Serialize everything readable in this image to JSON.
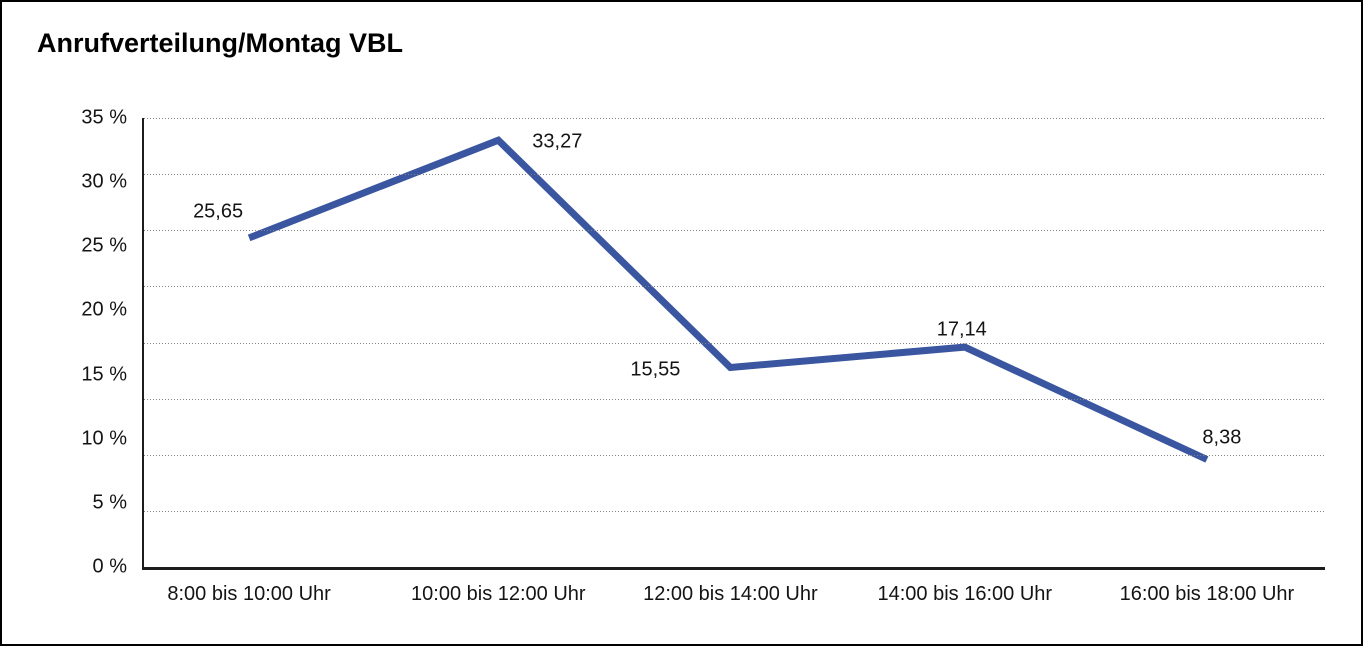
{
  "figure": {
    "background": "#ffffff",
    "border_color": "#000000"
  },
  "chart_data": {
    "type": "line",
    "title": "Anrufverteilung/Montag VBL",
    "categories": [
      "8:00 bis 10:00 Uhr",
      "10:00 bis 12:00 Uhr",
      "12:00 bis 14:00 Uhr",
      "14:00 bis 16:00 Uhr",
      "16:00 bis 18:00 Uhr"
    ],
    "values": [
      25.65,
      33.27,
      15.55,
      17.14,
      8.38
    ],
    "value_labels": [
      "25,65",
      "33,27",
      "15,55",
      "17,14",
      "8,38"
    ],
    "ytick_labels": [
      "35 %",
      "30 %",
      "25 %",
      "20 %",
      "15 %",
      "10 %",
      "5 %",
      "0 %"
    ],
    "ylim": [
      0,
      35
    ],
    "xlabel": "",
    "ylabel": "",
    "grid": "horizontal-dotted",
    "legend": false,
    "line_color": "#3b56a0"
  }
}
